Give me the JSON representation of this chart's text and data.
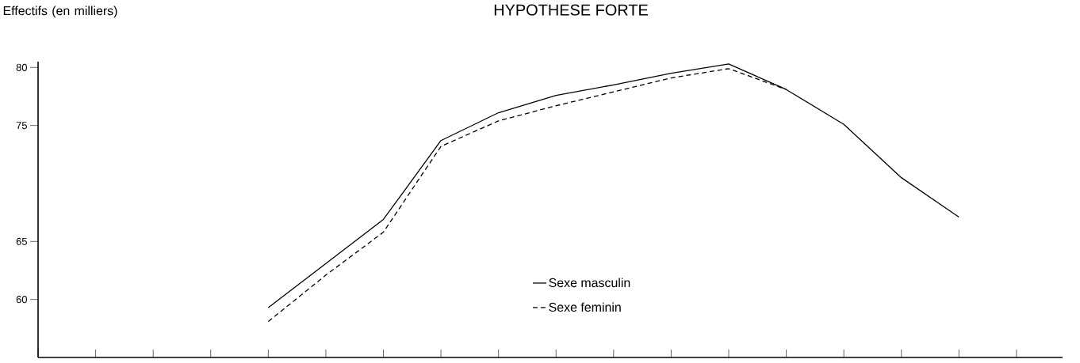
{
  "chart_data": {
    "type": "line",
    "title": "HYPOTHESE FORTE",
    "ylabel": "Effectifs (en milliers)",
    "categories": [
      null,
      null,
      null,
      null,
      null,
      null,
      null,
      null,
      null,
      null,
      null,
      null,
      null,
      null,
      null,
      null,
      null,
      null
    ],
    "series": [
      {
        "name": "Sexe masculin",
        "color": "#000000",
        "line_style": "solid",
        "values": [
          null,
          null,
          null,
          null,
          59.3,
          63.1,
          66.9,
          73.7,
          76.1,
          77.6,
          78.5,
          79.5,
          80.3,
          78.1,
          75.1,
          70.5,
          67.1,
          null
        ]
      },
      {
        "name": "Sexe feminin",
        "color": "#000000",
        "line_style": "dashed",
        "values": [
          null,
          null,
          null,
          null,
          58.1,
          62.1,
          65.8,
          73.2,
          75.4,
          76.7,
          77.9,
          79.1,
          79.9,
          78.1,
          null,
          null,
          null,
          null
        ]
      }
    ],
    "ylim": [
      55,
      80.5
    ],
    "yticks": [
      60,
      65,
      75,
      80
    ],
    "tick_labels": "y",
    "legend": "bottom"
  }
}
